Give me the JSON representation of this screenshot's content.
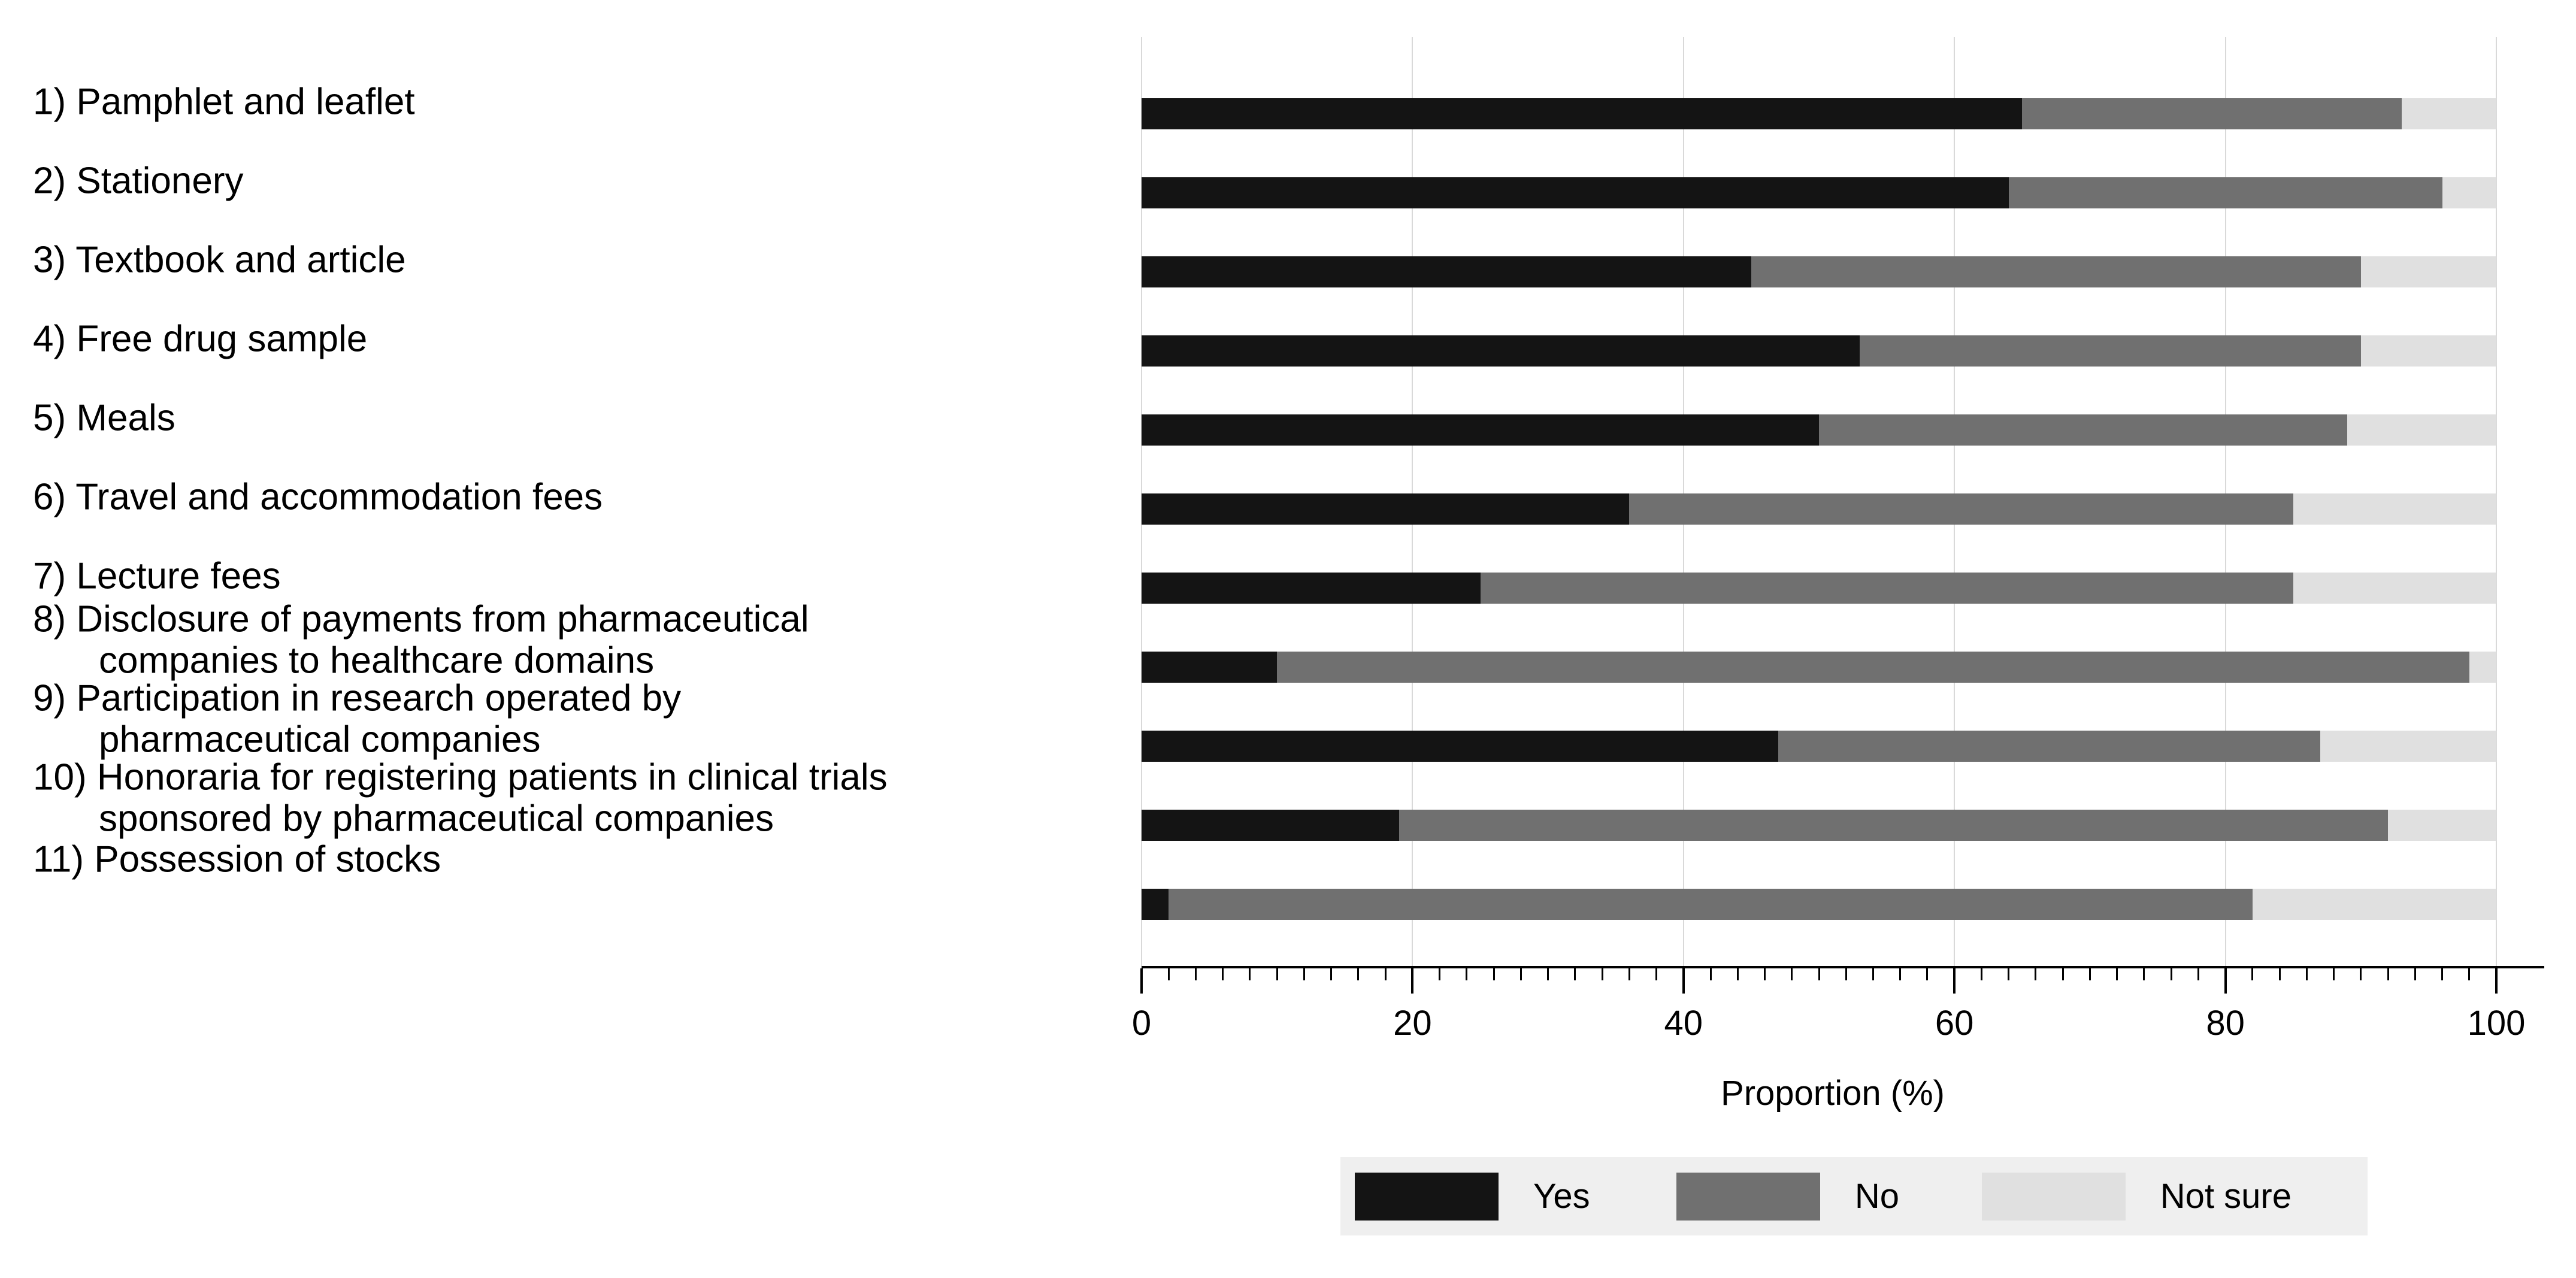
{
  "chart_data": {
    "type": "bar",
    "orientation": "horizontal",
    "stacked": true,
    "title": "",
    "xlabel": "Proportion (%)",
    "ylabel": "",
    "xlim": [
      0,
      100
    ],
    "xticks": [
      0,
      20,
      40,
      60,
      80,
      100
    ],
    "minor_tick_step": 2,
    "grid": "vertical-major",
    "legend_position": "bottom",
    "categories": [
      "1) Pamphlet and leaflet",
      "2) Stationery",
      "3) Textbook and article",
      "4) Free drug sample",
      "5) Meals",
      "6) Travel and accommodation fees",
      "7) Lecture fees",
      "8) Disclosure of payments from pharmaceutical\ncompanies to healthcare domains",
      "9) Participation in research operated by\npharmaceutical companies",
      "10) Honoraria for registering patients in clinical trials\nsponsored by pharmaceutical companies",
      "11) Possession of stocks"
    ],
    "series": [
      {
        "name": "Yes",
        "color": "#141414",
        "values": [
          65,
          64,
          45,
          53,
          50,
          36,
          25,
          10,
          47,
          19,
          2
        ]
      },
      {
        "name": "No",
        "color": "#707070",
        "values": [
          28,
          32,
          45,
          37,
          39,
          49,
          60,
          88,
          40,
          73,
          80
        ]
      },
      {
        "name": "Not sure",
        "color": "#e0e0e0",
        "values": [
          7,
          4,
          10,
          10,
          11,
          15,
          15,
          2,
          13,
          8,
          18
        ]
      }
    ],
    "colors": {
      "grid": "#d9d9d9",
      "axis": "#000000",
      "legend_background": "#efefef",
      "text": "#000000"
    }
  }
}
